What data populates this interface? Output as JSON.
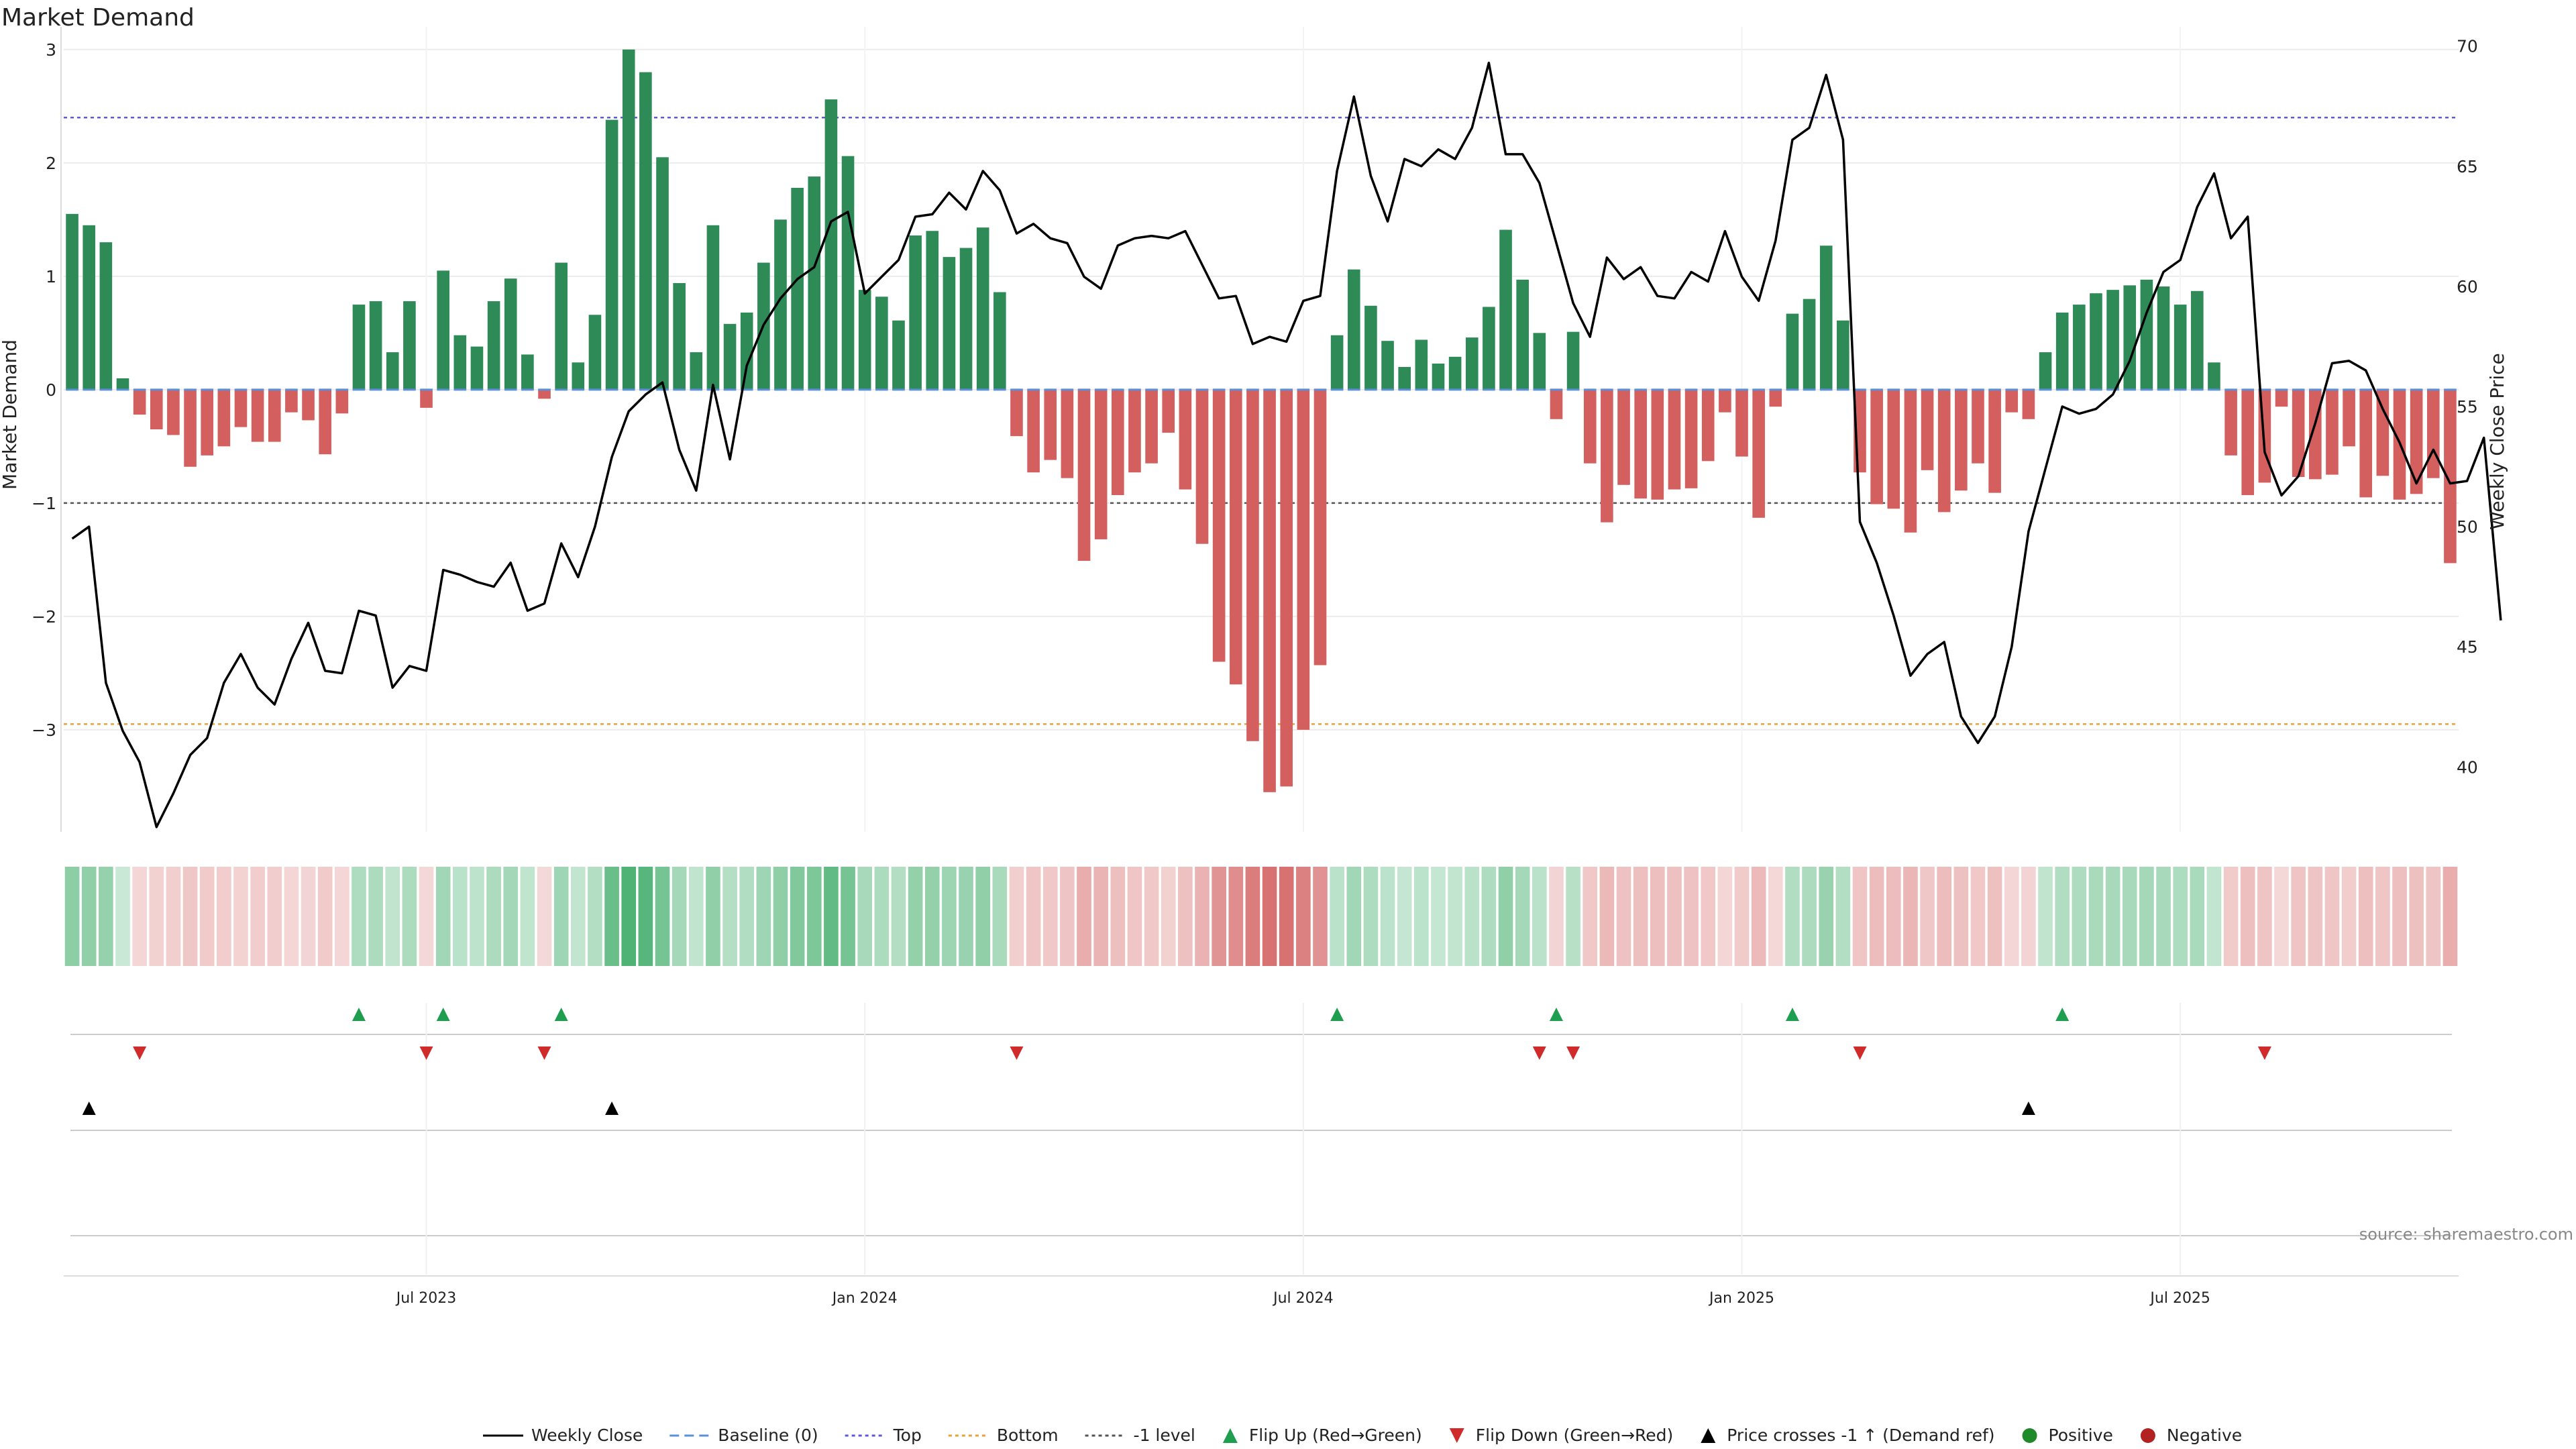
{
  "title": "Market Demand",
  "source_note": "source: sharemaestro.com",
  "colors": {
    "positive": "#2e8b57",
    "negative": "#d35f5f",
    "price_line": "#000000",
    "top_line": "#5b5bd6",
    "bottom_line": "#e6a23c",
    "neg1_line": "#555555",
    "flip_up": "#1f9e50",
    "flip_down": "#cf2b2b",
    "cross": "#000000",
    "legend_positive": "#1f8a2a",
    "legend_negative": "#b22222",
    "baseline_marker": "#5b8fd6"
  },
  "chart_data": {
    "type": "bar",
    "title": "Market Demand",
    "ylabel": "Market Demand",
    "ylabel_right": "Weekly Close Price",
    "ylim": [
      -3.9,
      3.2
    ],
    "ylim_right": [
      37.3,
      70.8
    ],
    "yticks": [
      3,
      2,
      1,
      0,
      -1,
      -2,
      -3
    ],
    "ytick_labels": [
      "3",
      "2",
      "1",
      "0",
      "−1",
      "−2",
      "−3"
    ],
    "yticks_right": [
      70,
      65,
      60,
      55,
      50,
      45,
      40
    ],
    "ytick_labels_right": [
      "70",
      "65",
      "60",
      "55",
      "50",
      "45",
      "40"
    ],
    "reference_lines": [
      {
        "name": "Top",
        "value": 2.4
      },
      {
        "name": "Bottom",
        "value": -2.95
      },
      {
        "name": "-1 level",
        "value": -1.0
      }
    ],
    "x_tick_labels": [
      {
        "label": "Jul 2023",
        "week": 21
      },
      {
        "label": "Jan 2024",
        "week": 47
      },
      {
        "label": "Jul 2024",
        "week": 73
      },
      {
        "label": "Jan 2025",
        "week": 99
      },
      {
        "label": "Jul 2025",
        "week": 125
      }
    ],
    "demand": [
      1.55,
      1.45,
      1.3,
      0.1,
      -0.22,
      -0.35,
      -0.4,
      -0.68,
      -0.58,
      -0.5,
      -0.33,
      -0.46,
      -0.46,
      -0.2,
      -0.27,
      -0.57,
      -0.21,
      0.75,
      0.78,
      0.33,
      0.78,
      -0.16,
      1.05,
      0.48,
      0.38,
      0.78,
      0.98,
      0.31,
      -0.08,
      1.12,
      0.24,
      0.66,
      2.38,
      3.0,
      2.8,
      2.05,
      0.94,
      0.33,
      1.45,
      0.58,
      0.68,
      1.12,
      1.5,
      1.78,
      1.88,
      2.56,
      2.06,
      0.88,
      0.82,
      0.61,
      1.36,
      1.4,
      1.17,
      1.25,
      1.43,
      0.86,
      -0.41,
      -0.73,
      -0.62,
      -0.78,
      -1.51,
      -1.32,
      -0.93,
      -0.73,
      -0.65,
      -0.38,
      -0.88,
      -1.36,
      -2.4,
      -2.6,
      -3.1,
      -3.55,
      -3.5,
      -3.0,
      -2.43,
      0.48,
      1.06,
      0.74,
      0.43,
      0.2,
      0.44,
      0.23,
      0.29,
      0.46,
      0.73,
      1.41,
      0.97,
      0.5,
      -0.26,
      0.51,
      -0.65,
      -1.17,
      -0.84,
      -0.96,
      -0.97,
      -0.88,
      -0.87,
      -0.63,
      -0.2,
      -0.59,
      -1.13,
      -0.15,
      0.67,
      0.8,
      1.27,
      0.61,
      -0.73,
      -1.01,
      -1.05,
      -1.26,
      -0.71,
      -1.08,
      -0.89,
      -0.65,
      -0.91,
      -0.2,
      -0.26,
      0.33,
      0.68,
      0.75,
      0.85,
      0.88,
      0.92,
      0.97,
      0.91,
      0.75,
      0.87,
      0.24,
      -0.58,
      -0.93,
      -0.82,
      -0.15,
      -0.77,
      -0.79,
      -0.75,
      -0.5,
      -0.95,
      -0.76,
      -0.97,
      -0.92,
      -0.78,
      -1.53
    ],
    "price": [
      49.5,
      50.0,
      43.5,
      41.5,
      40.2,
      37.5,
      38.9,
      40.5,
      41.2,
      43.5,
      44.7,
      43.3,
      42.6,
      44.5,
      46.0,
      44.0,
      43.9,
      46.5,
      46.3,
      43.3,
      44.2,
      44.0,
      48.2,
      48.0,
      47.7,
      47.5,
      48.5,
      46.5,
      46.8,
      49.3,
      47.9,
      50.0,
      52.9,
      54.8,
      55.5,
      56.0,
      53.2,
      51.5,
      55.9,
      52.8,
      56.7,
      58.4,
      59.5,
      60.3,
      60.8,
      62.7,
      63.1,
      59.7,
      60.4,
      61.1,
      62.9,
      63.0,
      63.9,
      63.2,
      64.8,
      64.0,
      62.2,
      62.6,
      62.0,
      61.8,
      60.4,
      59.9,
      61.7,
      62.0,
      62.1,
      62.0,
      62.3,
      60.9,
      59.5,
      59.6,
      57.6,
      57.9,
      57.7,
      59.4,
      59.6,
      64.8,
      67.9,
      64.6,
      62.7,
      65.3,
      65.0,
      65.7,
      65.3,
      66.6,
      69.3,
      65.5,
      65.5,
      64.3,
      61.8,
      59.3,
      57.9,
      61.2,
      60.3,
      60.8,
      59.6,
      59.5,
      60.6,
      60.2,
      62.3,
      60.4,
      59.4,
      61.9,
      66.1,
      66.6,
      68.8,
      66.1,
      50.2,
      48.5,
      46.3,
      43.8,
      44.7,
      45.2,
      42.1,
      41.0,
      42.1,
      45.0,
      49.8,
      52.4,
      55.0,
      54.7,
      54.9,
      55.5,
      56.9,
      58.9,
      60.6,
      61.1,
      63.3,
      64.7,
      62.0,
      62.9,
      53.1,
      51.3,
      52.1,
      54.3,
      56.8,
      56.9,
      56.5,
      54.9,
      53.5,
      51.8,
      53.2,
      51.8,
      51.9,
      53.7,
      46.1
    ]
  },
  "flip_up_weeks": [
    17,
    22,
    29,
    75,
    88,
    102,
    118
  ],
  "flip_down_weeks": [
    4,
    21,
    28,
    56,
    87,
    89,
    106,
    130
  ],
  "cross_weeks": [
    1,
    32,
    116
  ],
  "legend": [
    {
      "key": "weekly_close",
      "label": "Weekly Close",
      "icon": "solid-line-icon"
    },
    {
      "key": "baseline",
      "label": "Baseline (0)",
      "icon": "dashed-line-icon"
    },
    {
      "key": "top",
      "label": "Top",
      "icon": "dotted-line-icon"
    },
    {
      "key": "bottom",
      "label": "Bottom",
      "icon": "dotted-line-icon"
    },
    {
      "key": "neg1",
      "label": "-1 level",
      "icon": "dotted-line-icon"
    },
    {
      "key": "flip_up",
      "label": "Flip Up (Red→Green)",
      "icon": "triangle-up-icon"
    },
    {
      "key": "flip_down",
      "label": "Flip Down (Green→Red)",
      "icon": "triangle-down-icon"
    },
    {
      "key": "cross",
      "label": "Price crosses -1 ↑ (Demand ref)",
      "icon": "triangle-up-icon"
    },
    {
      "key": "positive",
      "label": "Positive",
      "icon": "circle-icon"
    },
    {
      "key": "negative",
      "label": "Negative",
      "icon": "circle-icon"
    }
  ]
}
